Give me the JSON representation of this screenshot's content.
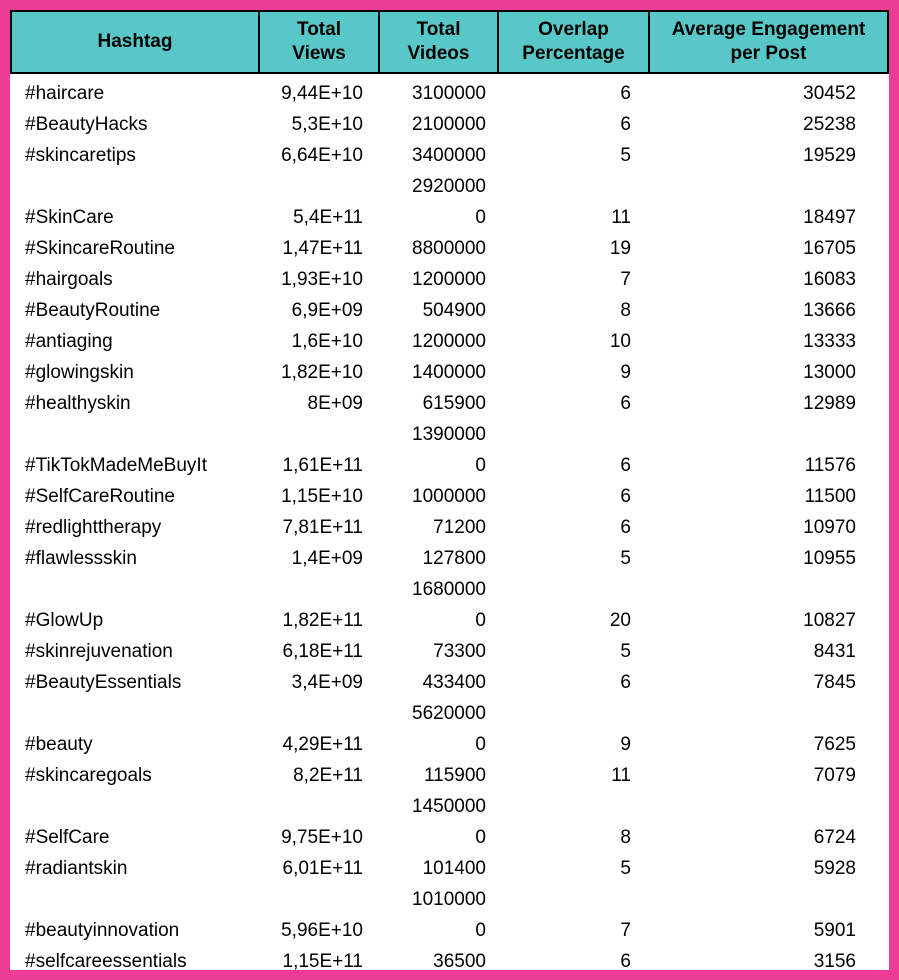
{
  "colors": {
    "border_pink": "#ED3C95",
    "header_teal": "#57C7C7",
    "text": "#000000",
    "body_background": "#FFFFFF"
  },
  "chart_data": {
    "type": "table",
    "title": "Hashtag overlap and engagement table",
    "columns": [
      {
        "key": "hashtag",
        "label": "Hashtag"
      },
      {
        "key": "views",
        "label": "Total\nViews"
      },
      {
        "key": "videos",
        "label": "Total\nVideos"
      },
      {
        "key": "overlap",
        "label": "Overlap\nPercentage"
      },
      {
        "key": "engagement",
        "label": "Average Engagement\nper Post"
      }
    ],
    "rows": [
      [
        "#haircare",
        "9,44E+10",
        "3100000",
        "6",
        "30452"
      ],
      [
        "#BeautyHacks",
        "5,3E+10",
        "2100000",
        "6",
        "25238"
      ],
      [
        "#skincaretips",
        "6,64E+10",
        "3400000\n2920000",
        "5",
        "19529"
      ],
      [
        "#SkinCare",
        "5,4E+11",
        "0",
        "11",
        "18497"
      ],
      [
        "#SkincareRoutine",
        "1,47E+11",
        "8800000",
        "19",
        "16705"
      ],
      [
        "#hairgoals",
        "1,93E+10",
        "1200000",
        "7",
        "16083"
      ],
      [
        "#BeautyRoutine",
        "6,9E+09",
        "504900",
        "8",
        "13666"
      ],
      [
        "#antiaging",
        "1,6E+10",
        "1200000",
        "10",
        "13333"
      ],
      [
        "#glowingskin",
        "1,82E+10",
        "1400000",
        "9",
        "13000"
      ],
      [
        "#healthyskin",
        "8E+09",
        "615900\n1390000",
        "6",
        "12989"
      ],
      [
        "#TikTokMadeMeBuyIt",
        "1,61E+11",
        "0",
        "6",
        "11576"
      ],
      [
        "#SelfCareRoutine",
        "1,15E+10",
        "1000000",
        "6",
        "11500"
      ],
      [
        "#redlighttherapy",
        "7,81E+11",
        "71200",
        "6",
        "10970"
      ],
      [
        "#flawlessskin",
        "1,4E+09",
        "127800\n1680000",
        "5",
        "10955"
      ],
      [
        "#GlowUp",
        "1,82E+11",
        "0",
        "20",
        "10827"
      ],
      [
        "#skinrejuvenation",
        "6,18E+11",
        "73300",
        "5",
        "8431"
      ],
      [
        "#BeautyEssentials",
        "3,4E+09",
        "433400\n5620000",
        "6",
        "7845"
      ],
      [
        "#beauty",
        "4,29E+11",
        "0",
        "9",
        "7625"
      ],
      [
        "#skincaregoals",
        "8,2E+11",
        "115900\n1450000",
        "11",
        "7079"
      ],
      [
        "#SelfCare",
        "9,75E+10",
        "0",
        "8",
        "6724"
      ],
      [
        "#radiantskin",
        "6,01E+11",
        "101400\n1010000",
        "5",
        "5928"
      ],
      [
        "#beautyinnovation",
        "5,96E+10",
        "0",
        "7",
        "5901"
      ],
      [
        "#selfcareessentials",
        "1,15E+11",
        "36500",
        "6",
        "3156"
      ]
    ]
  }
}
